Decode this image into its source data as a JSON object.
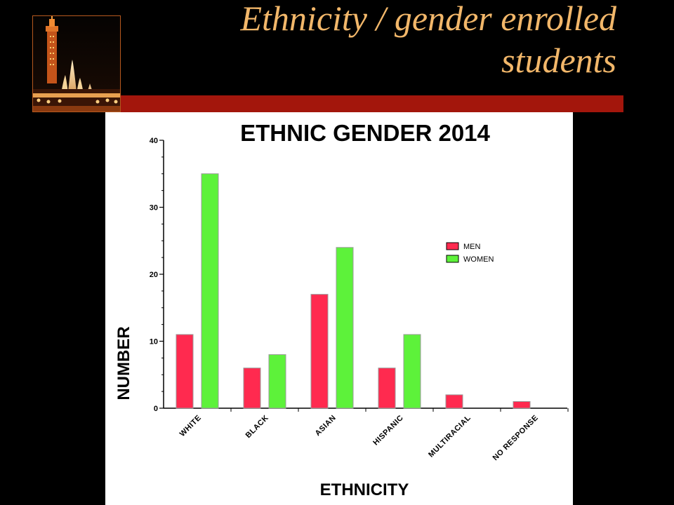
{
  "slide": {
    "title_line1": "Ethnicity / gender enrolled",
    "title_line2": "students"
  },
  "colors": {
    "background": "#000000",
    "title": "#f2b76a",
    "accent_bar": "#a3160c",
    "men": "#ff2a4f",
    "women": "#5df23a"
  },
  "chart_data": {
    "type": "bar",
    "title": "ETHNIC GENDER 2014",
    "xlabel": "ETHNICITY",
    "ylabel": "NUMBER",
    "ylim": [
      0,
      40
    ],
    "yticks": [
      0,
      10,
      20,
      30,
      40
    ],
    "grid": false,
    "legend_position": "right",
    "categories": [
      "WHITE",
      "BLACK",
      "ASIAN",
      "HISPANIC",
      "MULTIRACIAL",
      "NO RESPONSE"
    ],
    "series": [
      {
        "name": "MEN",
        "values": [
          11,
          6,
          17,
          6,
          2,
          1
        ]
      },
      {
        "name": "WOMEN",
        "values": [
          35,
          8,
          24,
          11,
          0,
          0
        ]
      }
    ]
  }
}
